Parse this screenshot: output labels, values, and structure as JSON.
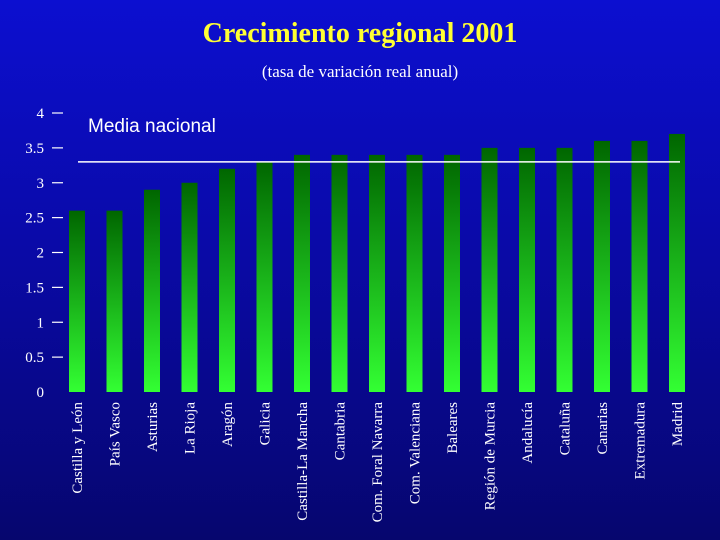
{
  "chart_data": {
    "type": "bar",
    "title": "Crecimiento regional 2001",
    "subtitle": "(tasa de variación real anual)",
    "xlabel": "",
    "ylabel": "",
    "ylim": [
      0,
      4
    ],
    "yticks": [
      "0",
      "0.5",
      "1",
      "1.5",
      "2",
      "2.5",
      "3",
      "3.5",
      "4"
    ],
    "grid": false,
    "categories": [
      "Castilla y León",
      "País Vasco",
      "Asturias",
      "La Rioja",
      "Aragón",
      "Galicia",
      "Castilla-La Mancha",
      "Cantabria",
      "Com. Foral Navarra",
      "Com. Valenciana",
      "Baleares",
      "Región de Murcia",
      "Andalucía",
      "Cataluña",
      "Canarias",
      "Extremadura",
      "Madrid"
    ],
    "values": [
      2.6,
      2.6,
      2.9,
      3.0,
      3.2,
      3.3,
      3.4,
      3.4,
      3.4,
      3.4,
      3.4,
      3.5,
      3.5,
      3.5,
      3.6,
      3.6,
      3.7
    ],
    "reference_line": {
      "label": "Media nacional",
      "value": 3.3
    },
    "colors": {
      "bar_top": "#006600",
      "bar_bottom": "#33ff33",
      "title": "#ffff33",
      "text": "#ffffff",
      "background": "#0a0ab0"
    }
  }
}
